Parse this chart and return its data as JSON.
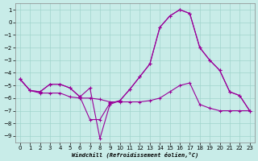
{
  "xlabel": "Windchill (Refroidissement éolien,°C)",
  "background_color": "#c8ece8",
  "grid_color": "#a0d4cc",
  "line_color": "#990099",
  "spine_color": "#888888",
  "ylim": [
    -9.5,
    1.5
  ],
  "xlim": [
    -0.5,
    23.5
  ],
  "yticks": [
    1,
    0,
    -1,
    -2,
    -3,
    -4,
    -5,
    -6,
    -7,
    -8,
    -9
  ],
  "xticks": [
    0,
    1,
    2,
    3,
    4,
    5,
    6,
    7,
    8,
    9,
    10,
    11,
    12,
    13,
    14,
    15,
    16,
    17,
    18,
    19,
    20,
    21,
    22,
    23
  ],
  "line1_x": [
    0,
    1,
    2,
    3,
    4,
    5,
    6,
    7,
    8,
    9,
    10,
    11,
    12,
    13,
    14,
    15,
    16,
    17,
    18,
    19,
    20,
    21,
    22,
    23
  ],
  "line1_y": [
    -4.5,
    -5.4,
    -5.5,
    -4.9,
    -4.9,
    -5.2,
    -5.9,
    -7.7,
    -7.7,
    -6.4,
    -6.2,
    -5.3,
    -4.3,
    -3.3,
    -0.4,
    0.5,
    1.0,
    0.7,
    -2.0,
    -3.0,
    -3.8,
    -5.5,
    -5.8,
    -7.0
  ],
  "line2_x": [
    0,
    1,
    2,
    3,
    4,
    5,
    6,
    7,
    8,
    9,
    10,
    11,
    12,
    13,
    14,
    15,
    16,
    17,
    18,
    19,
    20,
    21,
    22,
    23
  ],
  "line2_y": [
    -4.5,
    -5.4,
    -5.5,
    -4.9,
    -4.9,
    -5.2,
    -5.9,
    -5.2,
    -9.2,
    -6.5,
    -6.2,
    -5.3,
    -4.3,
    -3.3,
    -0.4,
    0.5,
    1.0,
    0.7,
    -2.0,
    -3.0,
    -3.8,
    -5.5,
    -5.8,
    -7.0
  ],
  "line3_x": [
    0,
    1,
    2,
    3,
    4,
    5,
    6,
    7,
    8,
    9,
    10,
    11,
    12,
    13,
    14,
    15,
    16,
    17,
    18,
    19,
    20,
    21,
    22,
    23
  ],
  "line3_y": [
    -4.5,
    -5.4,
    -5.6,
    -5.6,
    -5.6,
    -5.9,
    -6.0,
    -6.0,
    -6.1,
    -6.3,
    -6.3,
    -6.3,
    -6.3,
    -6.2,
    -6.0,
    -5.5,
    -5.0,
    -4.8,
    -6.5,
    -6.8,
    -7.0,
    -7.0,
    -7.0,
    -7.0
  ],
  "tick_labelsize": 5,
  "xlabel_fontsize": 5,
  "marker_size": 2.5,
  "linewidth": 0.8
}
